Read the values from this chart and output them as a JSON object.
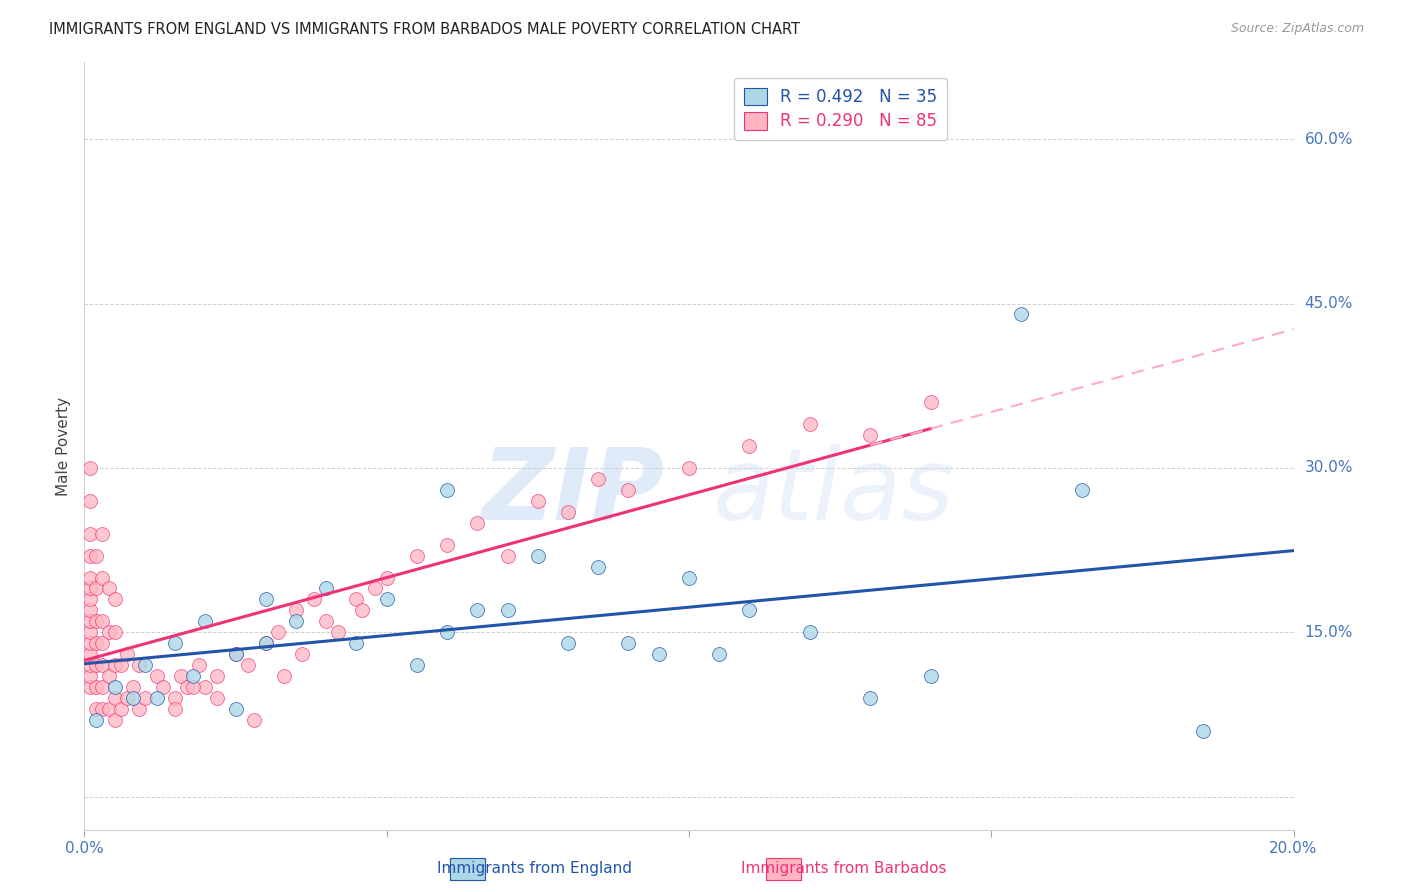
{
  "title": "IMMIGRANTS FROM ENGLAND VS IMMIGRANTS FROM BARBADOS MALE POVERTY CORRELATION CHART",
  "source": "Source: ZipAtlas.com",
  "ylabel": "Male Poverty",
  "england_color": "#ADD8E6",
  "barbados_color": "#FFB6C1",
  "england_line_color": "#2255AA",
  "barbados_line_color": "#EE3377",
  "barbados_dash_color": "#FFAACC",
  "watermark_zip": "ZIP",
  "watermark_atlas": "atlas",
  "background_color": "#FFFFFF",
  "grid_color": "#CCCCCC",
  "england_x": [
    0.002,
    0.005,
    0.008,
    0.01,
    0.012,
    0.015,
    0.018,
    0.02,
    0.025,
    0.025,
    0.03,
    0.03,
    0.035,
    0.04,
    0.045,
    0.05,
    0.055,
    0.06,
    0.06,
    0.065,
    0.07,
    0.075,
    0.08,
    0.085,
    0.09,
    0.095,
    0.1,
    0.105,
    0.11,
    0.12,
    0.13,
    0.14,
    0.155,
    0.165,
    0.185
  ],
  "england_y": [
    0.07,
    0.1,
    0.09,
    0.12,
    0.09,
    0.14,
    0.11,
    0.16,
    0.13,
    0.08,
    0.14,
    0.18,
    0.16,
    0.19,
    0.14,
    0.18,
    0.12,
    0.28,
    0.15,
    0.17,
    0.17,
    0.22,
    0.14,
    0.21,
    0.14,
    0.13,
    0.2,
    0.13,
    0.17,
    0.15,
    0.09,
    0.11,
    0.44,
    0.28,
    0.06
  ],
  "barbados_x": [
    0.001,
    0.001,
    0.001,
    0.001,
    0.001,
    0.001,
    0.001,
    0.001,
    0.001,
    0.001,
    0.001,
    0.001,
    0.001,
    0.001,
    0.001,
    0.002,
    0.002,
    0.002,
    0.002,
    0.002,
    0.002,
    0.002,
    0.003,
    0.003,
    0.003,
    0.003,
    0.003,
    0.003,
    0.003,
    0.004,
    0.004,
    0.004,
    0.004,
    0.005,
    0.005,
    0.005,
    0.005,
    0.005,
    0.006,
    0.006,
    0.007,
    0.007,
    0.008,
    0.009,
    0.009,
    0.01,
    0.012,
    0.013,
    0.015,
    0.016,
    0.017,
    0.019,
    0.02,
    0.022,
    0.025,
    0.027,
    0.03,
    0.032,
    0.035,
    0.038,
    0.04,
    0.045,
    0.048,
    0.05,
    0.055,
    0.06,
    0.065,
    0.07,
    0.075,
    0.08,
    0.085,
    0.09,
    0.1,
    0.11,
    0.12,
    0.13,
    0.14,
    0.015,
    0.018,
    0.022,
    0.028,
    0.033,
    0.036,
    0.042,
    0.046
  ],
  "barbados_y": [
    0.1,
    0.11,
    0.12,
    0.13,
    0.14,
    0.15,
    0.16,
    0.17,
    0.18,
    0.19,
    0.2,
    0.22,
    0.24,
    0.27,
    0.3,
    0.08,
    0.1,
    0.12,
    0.14,
    0.16,
    0.19,
    0.22,
    0.08,
    0.1,
    0.12,
    0.14,
    0.16,
    0.2,
    0.24,
    0.08,
    0.11,
    0.15,
    0.19,
    0.07,
    0.09,
    0.12,
    0.15,
    0.18,
    0.08,
    0.12,
    0.09,
    0.13,
    0.1,
    0.08,
    0.12,
    0.09,
    0.11,
    0.1,
    0.09,
    0.11,
    0.1,
    0.12,
    0.1,
    0.11,
    0.13,
    0.12,
    0.14,
    0.15,
    0.17,
    0.18,
    0.16,
    0.18,
    0.19,
    0.2,
    0.22,
    0.23,
    0.25,
    0.22,
    0.27,
    0.26,
    0.29,
    0.28,
    0.3,
    0.32,
    0.34,
    0.33,
    0.36,
    0.08,
    0.1,
    0.09,
    0.07,
    0.11,
    0.13,
    0.15,
    0.17
  ],
  "xlim": [
    0.0,
    0.2
  ],
  "ylim": [
    -0.03,
    0.67
  ],
  "yticks": [
    0.0,
    0.15,
    0.3,
    0.45,
    0.6
  ],
  "ytick_labels": [
    "",
    "15.0%",
    "30.0%",
    "45.0%",
    "60.0%"
  ],
  "xtick_positions": [
    0.0,
    0.05,
    0.1,
    0.15,
    0.2
  ],
  "england_trendline_intercept": 0.085,
  "england_trendline_slope": 1.15,
  "barbados_trendline_intercept": 0.095,
  "barbados_trendline_slope": 1.55
}
